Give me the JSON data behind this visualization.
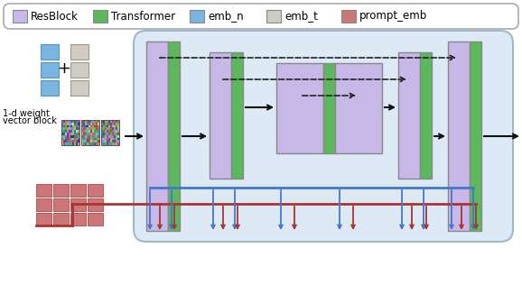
{
  "colors": {
    "resblock": "#c8b8e8",
    "transformer": "#5cb85c",
    "emb_n": "#7ab4e0",
    "emb_t": "#d0ccc4",
    "prompt_emb": "#cc7777",
    "bg_main": "#ddeaf6",
    "border_main": "#aabbcc",
    "arrow_blue": "#4477cc",
    "arrow_red": "#aa3333",
    "arrow_black": "#111111",
    "dashed": "#222222",
    "legend_border": "#aaaaaa",
    "white": "#ffffff"
  },
  "legend_items": [
    "ResBlock",
    "Transformer",
    "emb_n",
    "emb_t",
    "prompt_emb"
  ],
  "legend_colors": [
    "#c8b8e8",
    "#5cb85c",
    "#7ab4e0",
    "#d0ccc4",
    "#cc7777"
  ],
  "figsize": [
    5.78,
    3.16
  ],
  "dpi": 100
}
